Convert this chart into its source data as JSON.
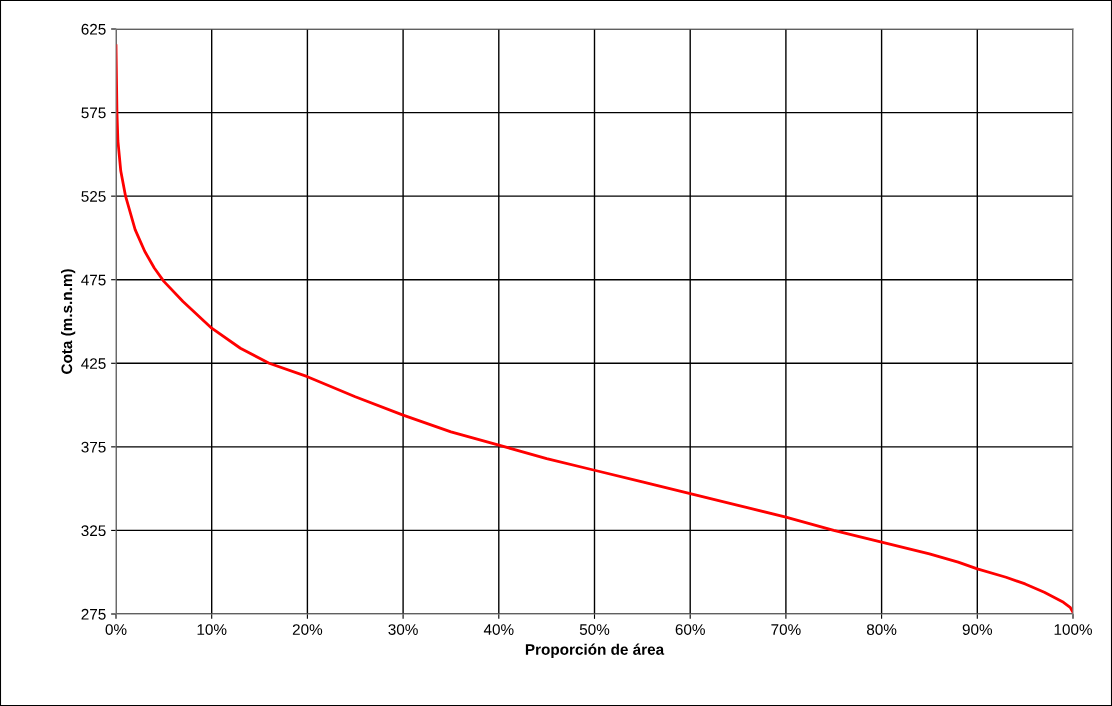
{
  "chart_data": {
    "type": "line",
    "xlabel": "Proporción de área",
    "ylabel": "Cota (m.s.n.m)",
    "x": [
      0,
      0.1,
      0.2,
      0.5,
      1,
      2,
      3,
      4,
      5,
      7,
      10,
      13,
      16,
      20,
      25,
      30,
      35,
      40,
      45,
      50,
      55,
      60,
      65,
      70,
      75,
      80,
      85,
      88,
      90,
      93,
      95,
      97,
      99,
      99.7,
      100
    ],
    "series": [
      {
        "color": "#ff0000",
        "values": [
          615,
          575,
          558,
          540,
          525,
          505,
          492,
          482,
          474,
          462,
          446,
          434,
          425,
          417,
          405,
          394,
          384,
          376,
          368,
          361,
          354,
          347,
          340,
          333,
          325,
          318,
          311,
          306,
          302,
          297,
          293,
          288,
          282,
          279,
          276
        ]
      }
    ],
    "xlim": [
      0,
      100
    ],
    "ylim": [
      275,
      625
    ],
    "xticks": [
      {
        "value": 0,
        "label": "0%"
      },
      {
        "value": 10,
        "label": "10%"
      },
      {
        "value": 20,
        "label": "20%"
      },
      {
        "value": 30,
        "label": "30%"
      },
      {
        "value": 40,
        "label": "40%"
      },
      {
        "value": 50,
        "label": "50%"
      },
      {
        "value": 60,
        "label": "60%"
      },
      {
        "value": 70,
        "label": "70%"
      },
      {
        "value": 80,
        "label": "80%"
      },
      {
        "value": 90,
        "label": "90%"
      },
      {
        "value": 100,
        "label": "100%"
      }
    ],
    "yticks": [
      275,
      325,
      375,
      425,
      475,
      525,
      575,
      625
    ],
    "grid": true,
    "marker": "none",
    "line_style": "solid"
  }
}
